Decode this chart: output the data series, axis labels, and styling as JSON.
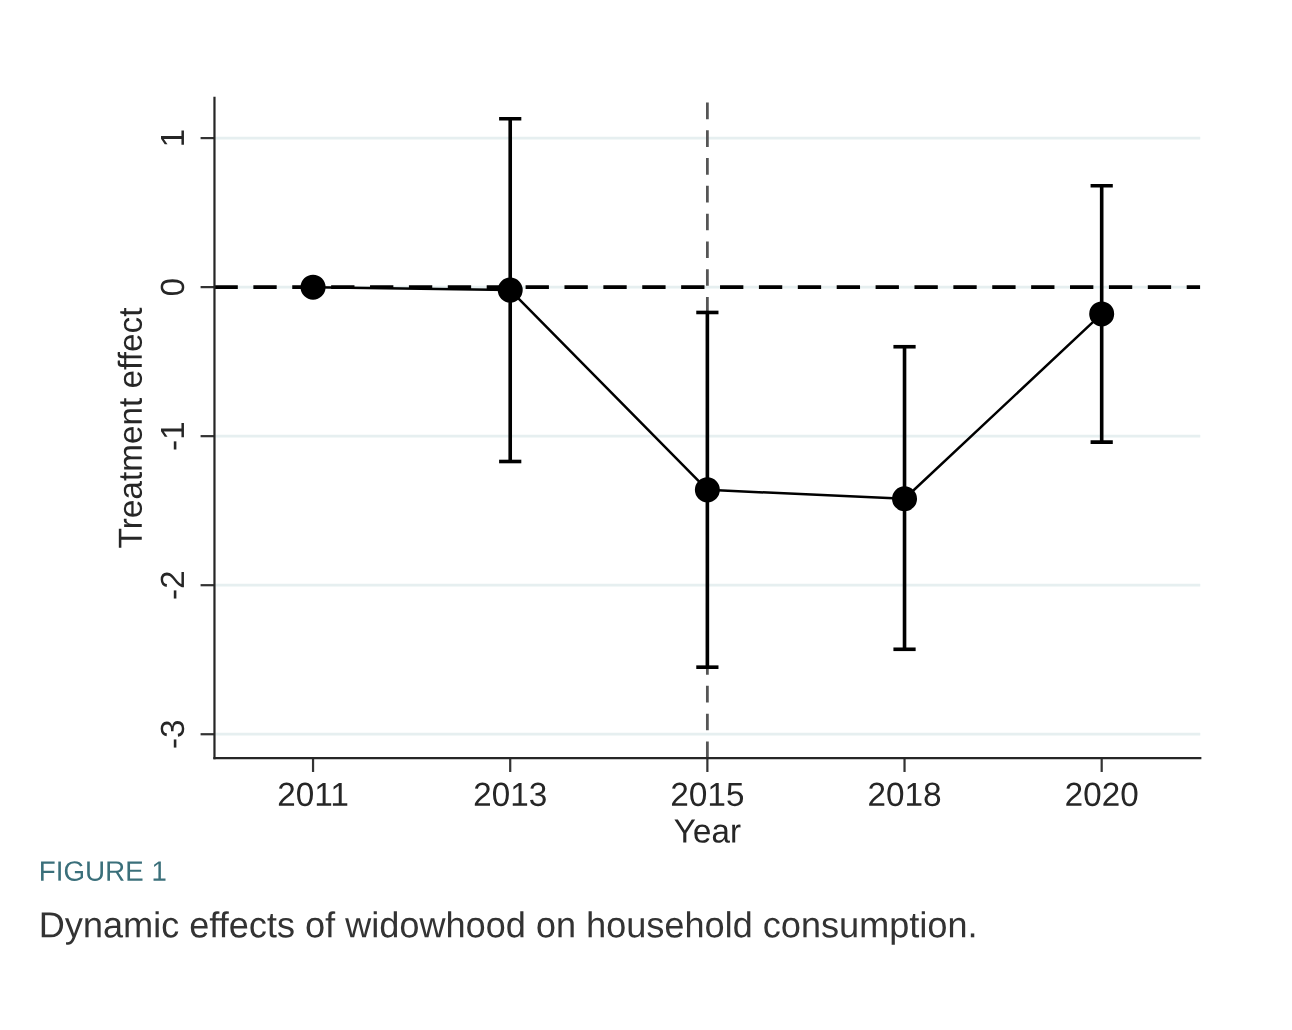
{
  "chart_data": {
    "type": "line",
    "title": "FIGURE 1",
    "subtitle": "Dynamic effects of widowhood on household consumption.",
    "xlabel": "Year",
    "ylabel": "Treatment effect",
    "categories": [
      "2011",
      "2013",
      "2015",
      "2018",
      "2020"
    ],
    "series": [
      {
        "color": "#000000",
        "values": [
          0,
          -0.02,
          -1.36,
          -1.42,
          -0.18
        ],
        "errors": [
          null,
          [
            -1.17,
            1.13
          ],
          [
            -2.55,
            -0.17
          ],
          [
            -2.43,
            -0.4
          ],
          [
            -1.04,
            0.68
          ]
        ]
      }
    ],
    "ylim": [
      -3.16,
      1.27
    ],
    "yticks": [
      -3,
      -2,
      -1,
      0,
      1
    ],
    "ref_lines": [
      {
        "axis": "y",
        "value": 0,
        "color": "#000000",
        "line_style": "dashed"
      },
      {
        "axis": "x",
        "value": "2015",
        "color": "#555555",
        "line_style": "dashed"
      }
    ],
    "grid": "y",
    "marker": "circle",
    "line_style": "solid"
  }
}
